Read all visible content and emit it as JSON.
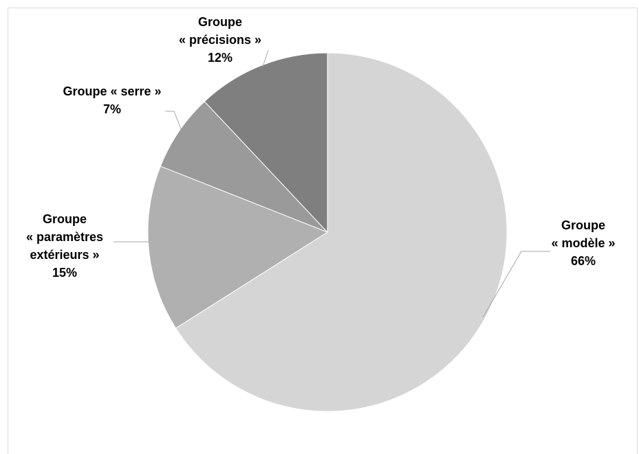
{
  "chart_data": {
    "type": "pie",
    "title": "",
    "slices": [
      {
        "label_lines": [
          "Groupe",
          "« modèle »"
        ],
        "value": 66,
        "value_label": "66%",
        "color": "#d5d5d5"
      },
      {
        "label_lines": [
          "Groupe",
          "« paramètres",
          "extérieurs »"
        ],
        "value": 15,
        "value_label": "15%",
        "color": "#b0b0b0"
      },
      {
        "label_lines": [
          "Groupe « serre »"
        ],
        "value": 7,
        "value_label": "7%",
        "color": "#9a9a9a"
      },
      {
        "label_lines": [
          "Groupe",
          "« précisions »"
        ],
        "value": 12,
        "value_label": "12%",
        "color": "#7f7f7f"
      }
    ],
    "legend": "none",
    "data_labels": "outside with leader lines"
  }
}
